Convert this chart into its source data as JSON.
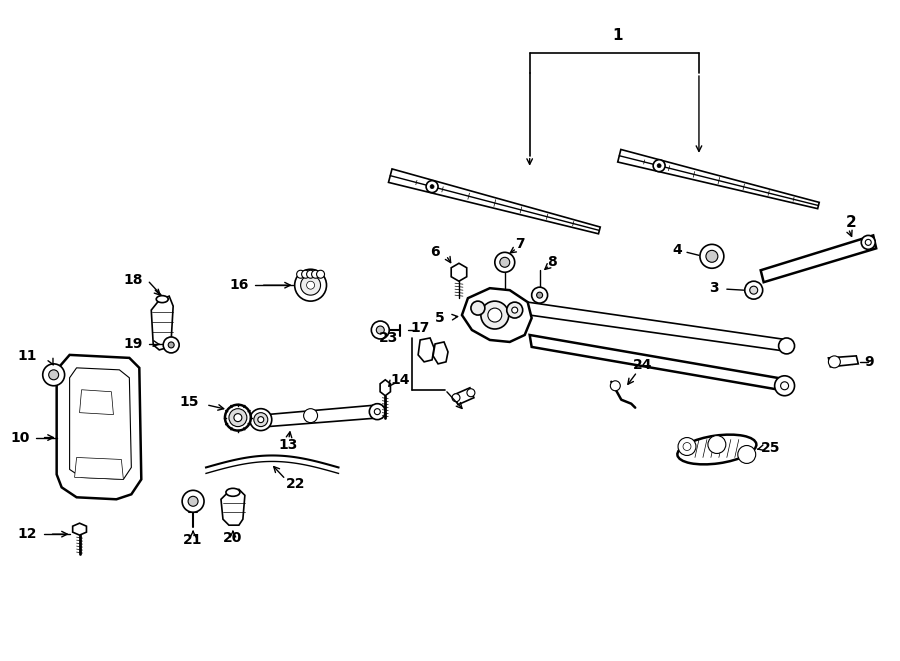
{
  "background_color": "#ffffff",
  "fig_width": 9.0,
  "fig_height": 6.61,
  "dpi": 100
}
